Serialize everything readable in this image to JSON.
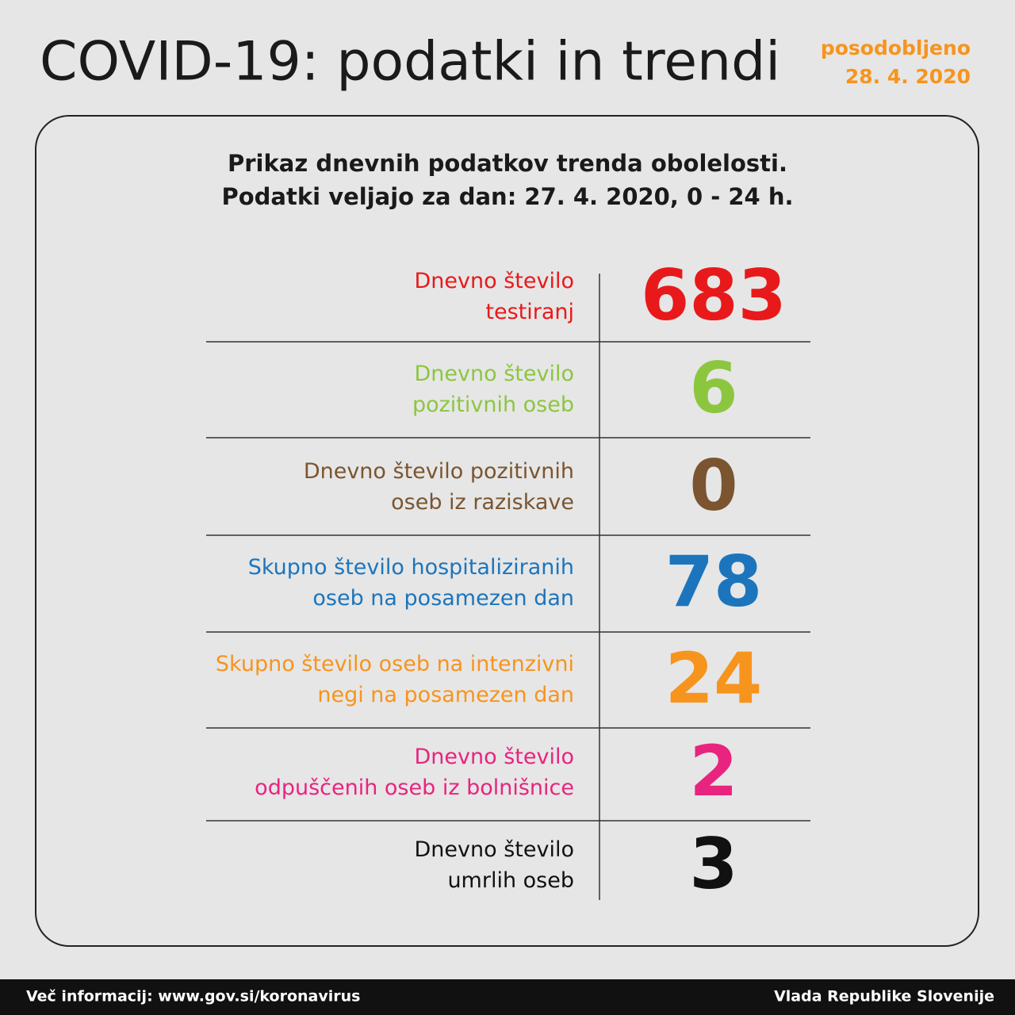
{
  "header": {
    "title": "COVID-19: podatki in trendi",
    "updated": [
      "posodobljeno",
      "28. 4. 2020"
    ]
  },
  "subtitle": [
    "Prikaz dnevnih podatkov trenda obolelosti.",
    "Podatki veljajo za dan: 27. 4. 2020, 0 - 24 h."
  ],
  "rows": [
    {
      "label": [
        "Dnevno število",
        "testiranj"
      ],
      "value": 683,
      "color": "#e8191b"
    },
    {
      "label": [
        "Dnevno število",
        "pozitivnih oseb"
      ],
      "value": 6,
      "color": "#8cc63f"
    },
    {
      "label": [
        "Dnevno število pozitivnih",
        "oseb iz raziskave"
      ],
      "value": 0,
      "color": "#7a5530"
    },
    {
      "label": [
        "Skupno število hospitaliziranih",
        "oseb na posamezen dan"
      ],
      "value": 78,
      "color": "#1c75bc"
    },
    {
      "label": [
        "Skupno število oseb na intenzivni",
        "negi na posamezen dan"
      ],
      "value": 24,
      "color": "#f7941d"
    },
    {
      "label": [
        "Dnevno število",
        "odpuščenih oseb iz bolnišnice"
      ],
      "value": 2,
      "color": "#e8247f"
    },
    {
      "label": [
        "Dnevno število",
        "umrlih oseb"
      ],
      "value": 3,
      "color": "#111111"
    }
  ],
  "footer": {
    "left": "Več informacij: www.gov.si/koronavirus",
    "right": "Vlada Republike Slovenije"
  }
}
